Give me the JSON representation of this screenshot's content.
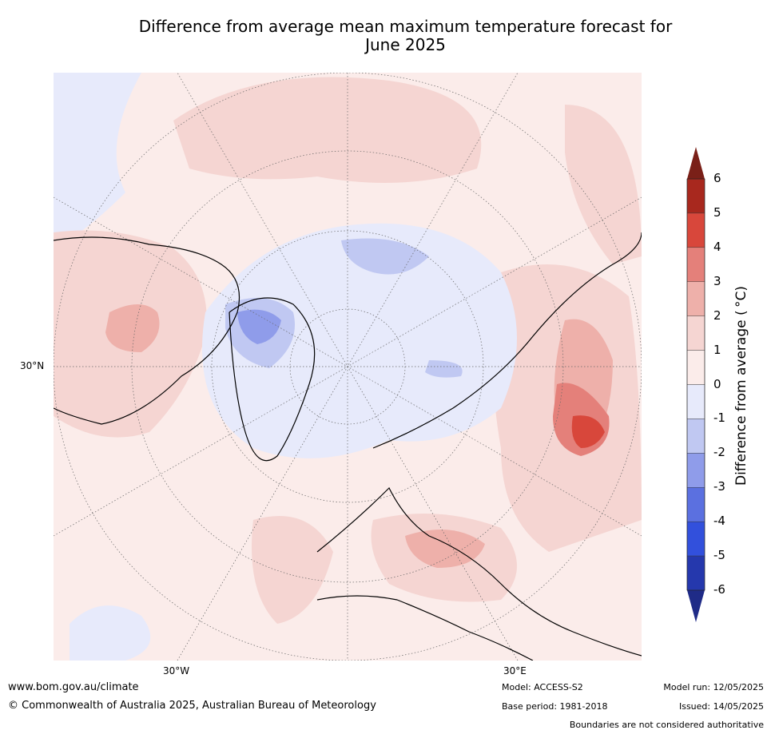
{
  "title_line1": "Difference from average mean maximum temperature forecast for",
  "title_line2": "June 2025",
  "axis_ticks": {
    "lat_30n": "30°N",
    "lon_30w": "30°W",
    "lon_30e": "30°E"
  },
  "colorbar": {
    "label": "Difference from average ( °C)",
    "ticks": [
      "6",
      "5",
      "4",
      "3",
      "2",
      "1",
      "0",
      "-1",
      "-2",
      "-3",
      "-4",
      "-5",
      "-6"
    ],
    "bins": [
      {
        "range": "5 to 6",
        "color": "#a8281e"
      },
      {
        "range": "4 to 5",
        "color": "#d8473b"
      },
      {
        "range": "3 to 4",
        "color": "#e4807a"
      },
      {
        "range": "2 to 3",
        "color": "#eeb0aa"
      },
      {
        "range": "1 to 2",
        "color": "#f5d5d2"
      },
      {
        "range": "0 to 1",
        "color": "#fbecea"
      },
      {
        "range": "-1 to 0",
        "color": "#e7eafb"
      },
      {
        "range": "-2 to -1",
        "color": "#c0c8f2"
      },
      {
        "range": "-3 to -2",
        "color": "#8f9cea"
      },
      {
        "range": "-4 to -3",
        "color": "#5b70e0"
      },
      {
        "range": "-5 to -4",
        "color": "#3250dc"
      },
      {
        "range": "-6 to -5",
        "color": "#2538ad"
      }
    ],
    "over_color": "#7a2018",
    "under_color": "#1f2b87"
  },
  "footer": {
    "website": "www.bom.gov.au/climate",
    "copyright": "© Commonwealth of Australia 2025, Australian Bureau of Meteorology",
    "model": "Model: ACCESS-S2",
    "base_period": "Base period: 1981-2018",
    "model_run": "Model run: 12/05/2025",
    "issued": "Issued: 14/05/2025",
    "boundaries_note": "Boundaries are not considered authoritative"
  }
}
